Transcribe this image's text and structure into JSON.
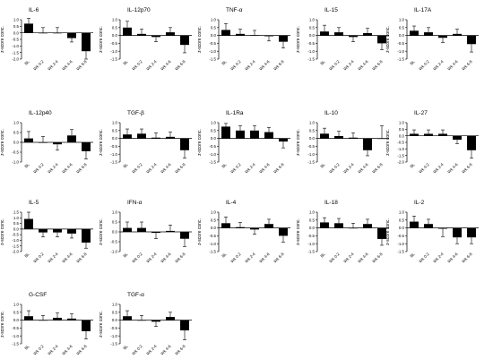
{
  "categories": [
    "BL",
    "Wk 0-2",
    "Wk 2-4",
    "Wk 4-6",
    "Wk 6-8"
  ],
  "ylabel": "z-score conc.",
  "colors": {
    "bar": "#000000",
    "axis": "#000000",
    "background": "#ffffff"
  },
  "chart_data": [
    {
      "type": "bar",
      "title": "IL-6",
      "ylim": [
        -2.0,
        1.0
      ],
      "ticks": [
        1.0,
        0.5,
        0.0,
        -0.5,
        -1.0,
        -1.5,
        -2.0
      ],
      "values": [
        0.7,
        0.0,
        0.0,
        -0.4,
        -1.4
      ],
      "errors": [
        0.4,
        0.4,
        0.4,
        0.3,
        0.6
      ]
    },
    {
      "type": "bar",
      "title": "IL-12p70",
      "ylim": [
        -1.5,
        1.0
      ],
      "ticks": [
        1.0,
        0.5,
        0.0,
        -0.5,
        -1.0,
        -1.5
      ],
      "values": [
        0.5,
        0.1,
        -0.1,
        0.2,
        -0.6
      ],
      "errors": [
        0.4,
        0.3,
        0.3,
        0.3,
        0.5
      ]
    },
    {
      "type": "bar",
      "title": "TNF-α",
      "ylim": [
        -1.5,
        1.0
      ],
      "ticks": [
        1.0,
        0.5,
        0.0,
        -0.5,
        -1.0,
        -1.5
      ],
      "values": [
        0.35,
        0.1,
        0.02,
        -0.05,
        -0.4
      ],
      "errors": [
        0.4,
        0.3,
        0.3,
        0.3,
        0.4
      ]
    },
    {
      "type": "bar",
      "title": "IL-15",
      "ylim": [
        -1.5,
        1.0
      ],
      "ticks": [
        1.0,
        0.5,
        0.0,
        -0.5,
        -1.0,
        -1.5
      ],
      "values": [
        0.25,
        0.2,
        -0.1,
        0.15,
        -0.5
      ],
      "errors": [
        0.4,
        0.3,
        0.3,
        0.3,
        0.4
      ]
    },
    {
      "type": "bar",
      "title": "IL-17A",
      "ylim": [
        -1.5,
        1.0
      ],
      "ticks": [
        1.0,
        0.5,
        0.0,
        -0.5,
        -1.0,
        -1.5
      ],
      "values": [
        0.3,
        0.2,
        -0.15,
        0.1,
        -0.55
      ],
      "errors": [
        0.3,
        0.3,
        0.3,
        0.3,
        0.5
      ]
    },
    {
      "type": "bar",
      "title": "IL-12p40",
      "ylim": [
        -1.0,
        1.0
      ],
      "ticks": [
        1.0,
        0.5,
        0.0,
        -0.5,
        -1.0
      ],
      "values": [
        0.2,
        0.0,
        -0.1,
        0.35,
        -0.45
      ],
      "errors": [
        0.35,
        0.3,
        0.3,
        0.3,
        0.4
      ]
    },
    {
      "type": "bar",
      "title": "TGF-β",
      "ylim": [
        -1.5,
        1.0
      ],
      "ticks": [
        1.0,
        0.5,
        0.0,
        -0.5,
        -1.0,
        -1.5
      ],
      "values": [
        0.25,
        0.3,
        0.05,
        0.1,
        -0.75
      ],
      "errors": [
        0.35,
        0.3,
        0.3,
        0.3,
        0.5
      ]
    },
    {
      "type": "bar",
      "title": "IL-1Ra",
      "ylim": [
        -1.5,
        1.0
      ],
      "ticks": [
        1.0,
        0.5,
        0.0,
        -0.5,
        -1.0,
        -1.5
      ],
      "values": [
        0.75,
        0.5,
        0.5,
        0.4,
        -0.2
      ],
      "errors": [
        0.2,
        0.3,
        0.3,
        0.3,
        0.4
      ]
    },
    {
      "type": "bar",
      "title": "IL-10",
      "ylim": [
        -1.5,
        1.0
      ],
      "ticks": [
        1.0,
        0.5,
        0.0,
        -0.5,
        -1.0,
        -1.5
      ],
      "values": [
        0.3,
        0.15,
        0.05,
        -0.75,
        0.0
      ],
      "errors": [
        0.35,
        0.3,
        0.3,
        0.35,
        0.8
      ]
    },
    {
      "type": "bar",
      "title": "IL-27",
      "ylim": [
        -2.0,
        1.0
      ],
      "ticks": [
        1.0,
        0.5,
        0.0,
        -0.5,
        -1.0,
        -1.5,
        -2.0
      ],
      "values": [
        0.15,
        0.15,
        0.15,
        -0.3,
        -1.1
      ],
      "errors": [
        0.3,
        0.3,
        0.3,
        0.3,
        0.6
      ]
    },
    {
      "type": "bar",
      "title": "IL-5",
      "ylim": [
        -2.0,
        1.5
      ],
      "ticks": [
        1.5,
        1.0,
        0.5,
        0.0,
        -0.5,
        -1.0,
        -1.5,
        -2.0
      ],
      "values": [
        0.9,
        -0.3,
        -0.3,
        -0.4,
        -1.2
      ],
      "errors": [
        0.6,
        0.4,
        0.4,
        0.4,
        0.5
      ]
    },
    {
      "type": "bar",
      "title": "IFN-α",
      "ylim": [
        -1.0,
        1.0
      ],
      "ticks": [
        1.0,
        0.5,
        0.0,
        -0.5,
        -1.0
      ],
      "values": [
        0.2,
        0.2,
        -0.05,
        0.05,
        -0.35
      ],
      "errors": [
        0.3,
        0.3,
        0.3,
        0.3,
        0.4
      ]
    },
    {
      "type": "bar",
      "title": "IL-4",
      "ylim": [
        -1.5,
        1.0
      ],
      "ticks": [
        1.0,
        0.5,
        0.0,
        -0.5,
        -1.0,
        -1.5
      ],
      "values": [
        0.3,
        0.05,
        -0.1,
        0.25,
        -0.5
      ],
      "errors": [
        0.4,
        0.3,
        0.3,
        0.3,
        0.4
      ]
    },
    {
      "type": "bar",
      "title": "IL-18",
      "ylim": [
        -1.5,
        1.0
      ],
      "ticks": [
        1.0,
        0.5,
        0.0,
        -0.5,
        -1.0,
        -1.5
      ],
      "values": [
        0.35,
        0.3,
        0.0,
        0.25,
        -0.7
      ],
      "errors": [
        0.3,
        0.3,
        0.3,
        0.3,
        0.4
      ]
    },
    {
      "type": "bar",
      "title": "IL-2",
      "ylim": [
        -1.5,
        1.0
      ],
      "ticks": [
        1.0,
        0.5,
        0.0,
        -0.5,
        -1.0,
        -1.5
      ],
      "values": [
        0.4,
        0.25,
        -0.05,
        -0.6,
        -0.6
      ],
      "errors": [
        0.35,
        0.3,
        0.5,
        0.4,
        0.4
      ]
    },
    {
      "type": "bar",
      "title": "G-CSF",
      "ylim": [
        -1.5,
        1.0
      ],
      "ticks": [
        1.0,
        0.5,
        0.0,
        -0.5,
        -1.0,
        -1.5
      ],
      "values": [
        0.25,
        0.0,
        0.15,
        0.1,
        -0.7
      ],
      "errors": [
        0.35,
        0.3,
        0.3,
        0.3,
        0.5
      ]
    },
    {
      "type": "bar",
      "title": "TGF-α",
      "ylim": [
        -1.5,
        1.0
      ],
      "ticks": [
        1.0,
        0.5,
        0.0,
        -0.5,
        -1.0,
        -1.5
      ],
      "values": [
        0.25,
        0.0,
        -0.1,
        0.2,
        -0.65
      ],
      "errors": [
        0.35,
        0.3,
        0.3,
        0.3,
        0.6
      ]
    }
  ]
}
